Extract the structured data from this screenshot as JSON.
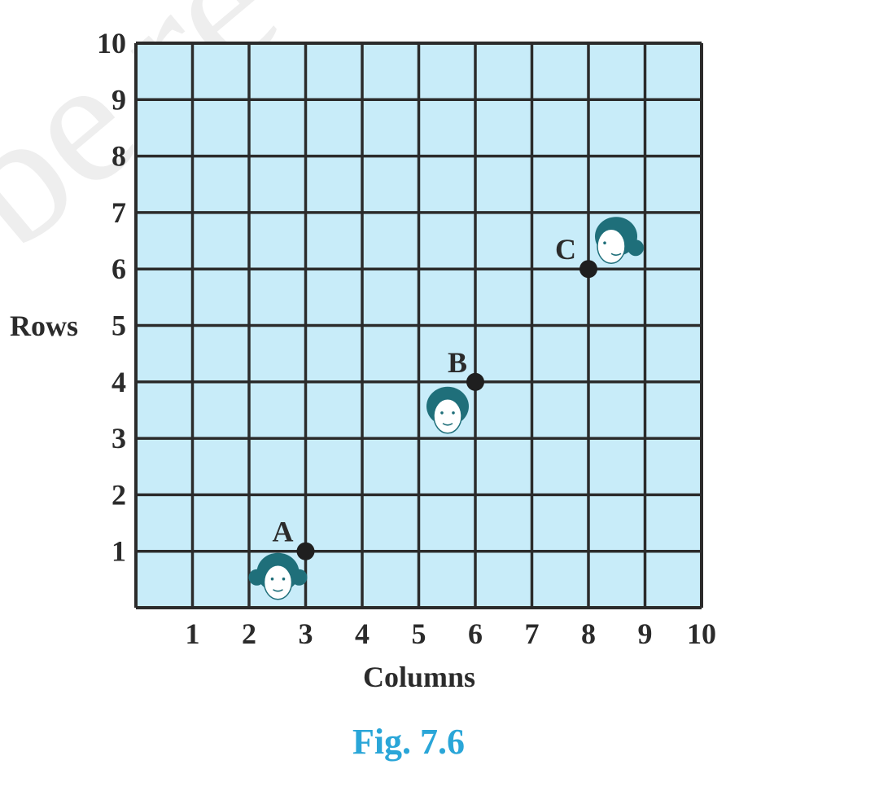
{
  "watermark": "be re",
  "chart_data": {
    "type": "scatter",
    "xlabel": "Columns",
    "ylabel": "Rows",
    "x_ticks": [
      "1",
      "2",
      "3",
      "4",
      "5",
      "6",
      "7",
      "8",
      "9",
      "10"
    ],
    "y_ticks": [
      "1",
      "2",
      "3",
      "4",
      "5",
      "6",
      "7",
      "8",
      "9",
      "10"
    ],
    "xlim": [
      0,
      10
    ],
    "ylim": [
      0,
      10
    ],
    "grid": true,
    "colors": {
      "grid_fill": "#c8ecf9",
      "grid_line": "#2b2b2b",
      "point": "#1f1f1f",
      "caption": "#2aa6d8",
      "face": "#1f6f7a"
    },
    "points": [
      {
        "label": "A",
        "x": 3,
        "y": 1,
        "face": "girl-with-pigtails"
      },
      {
        "label": "B",
        "x": 6,
        "y": 4,
        "face": "girl-short-hair"
      },
      {
        "label": "C",
        "x": 8,
        "y": 6,
        "face": "girl-ponytail-profile"
      }
    ]
  },
  "caption": "Fig. 7.6"
}
